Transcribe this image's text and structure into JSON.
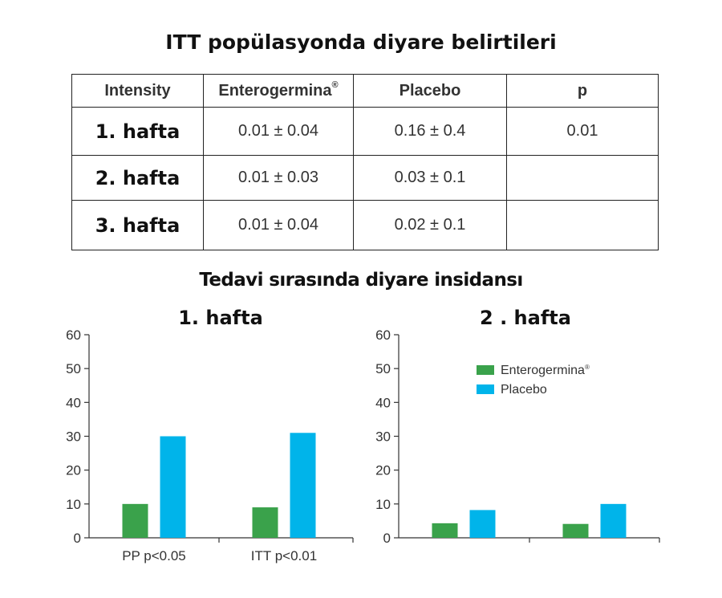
{
  "page_title": "ITT popülasyonda diyare belirtileri",
  "table": {
    "headers": [
      "Intensity",
      "Enterogermina",
      "Placebo",
      "p"
    ],
    "header_sup": "®",
    "rows": [
      {
        "label": "1. hafta",
        "enterogermina": "0.01 ± 0.04",
        "placebo": "0.16 ± 0.4",
        "p": "0.01"
      },
      {
        "label": "2. hafta",
        "enterogermina": "0.01 ± 0.03",
        "placebo": "0.03 ± 0.1",
        "p": ""
      },
      {
        "label": "3. hafta",
        "enterogermina": "0.01 ± 0.04",
        "placebo": "0.02 ± 0.1",
        "p": ""
      }
    ]
  },
  "section_title": "Tedavi sırasında diyare insidansı",
  "colors": {
    "enterogermina": "#3aa24b",
    "placebo": "#00b4ea",
    "axis": "#333333"
  },
  "chart_data": [
    {
      "type": "bar",
      "title": "1. hafta",
      "categories": [
        "PP p<0.05",
        "ITT p<0.01"
      ],
      "series": [
        {
          "name": "Enterogermina",
          "values": [
            10,
            9
          ]
        },
        {
          "name": "Placebo",
          "values": [
            30,
            31
          ]
        }
      ],
      "ylim": [
        0,
        60
      ],
      "yticks": [
        "0",
        "10",
        "20",
        "30",
        "40",
        "50",
        "60"
      ],
      "legend": false
    },
    {
      "type": "bar",
      "title": "2 . hafta",
      "categories": [
        "",
        ""
      ],
      "series": [
        {
          "name": "Enterogermina",
          "values": [
            4.3,
            4.1
          ]
        },
        {
          "name": "Placebo",
          "values": [
            8.2,
            10
          ]
        }
      ],
      "ylim": [
        0,
        60
      ],
      "yticks": [
        "0",
        "10",
        "20",
        "30",
        "40",
        "50",
        "60"
      ],
      "legend": true,
      "legend_position": "top-center",
      "legend_sup": "®"
    }
  ]
}
